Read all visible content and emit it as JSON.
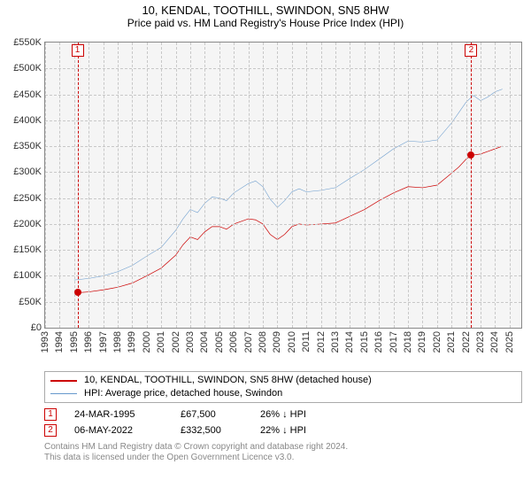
{
  "title": "10, KENDAL, TOOTHILL, SWINDON, SN5 8HW",
  "subtitle": "Price paid vs. HM Land Registry's House Price Index (HPI)",
  "chart": {
    "type": "line",
    "background_color": "#f5f5f5",
    "grid_color": "#c8c8c8",
    "x": {
      "min": 1993,
      "max": 2025.8,
      "labels": [
        "1993",
        "1994",
        "1995",
        "1996",
        "1997",
        "1998",
        "1999",
        "2000",
        "2001",
        "2002",
        "2003",
        "2004",
        "2005",
        "2006",
        "2007",
        "2008",
        "2009",
        "2010",
        "2011",
        "2012",
        "2013",
        "2014",
        "2015",
        "2016",
        "2017",
        "2018",
        "2019",
        "2020",
        "2021",
        "2022",
        "2023",
        "2024",
        "2025"
      ]
    },
    "y": {
      "min": 0,
      "max": 550000,
      "step": 50000,
      "labels": [
        "£0",
        "£50K",
        "£100K",
        "£150K",
        "£200K",
        "£250K",
        "£300K",
        "£350K",
        "£400K",
        "£450K",
        "£500K",
        "£550K"
      ],
      "fontsize": 11
    },
    "series": [
      {
        "name": "10, KENDAL, TOOTHILL, SWINDON, SN5 8HW (detached house)",
        "color": "#cc0000",
        "line_width": 2,
        "points": [
          [
            1995.23,
            67500
          ],
          [
            1996,
            69000
          ],
          [
            1997,
            73000
          ],
          [
            1998,
            78000
          ],
          [
            1999,
            86000
          ],
          [
            2000,
            100000
          ],
          [
            2001,
            115000
          ],
          [
            2002,
            140000
          ],
          [
            2002.5,
            160000
          ],
          [
            2003,
            175000
          ],
          [
            2003.5,
            170000
          ],
          [
            2004,
            185000
          ],
          [
            2004.5,
            195000
          ],
          [
            2005,
            195000
          ],
          [
            2005.5,
            190000
          ],
          [
            2006,
            200000
          ],
          [
            2007,
            210000
          ],
          [
            2007.5,
            208000
          ],
          [
            2008,
            200000
          ],
          [
            2008.5,
            180000
          ],
          [
            2009,
            170000
          ],
          [
            2009.5,
            180000
          ],
          [
            2010,
            195000
          ],
          [
            2010.5,
            200000
          ],
          [
            2011,
            198000
          ],
          [
            2012,
            200000
          ],
          [
            2013,
            202000
          ],
          [
            2014,
            215000
          ],
          [
            2015,
            228000
          ],
          [
            2016,
            245000
          ],
          [
            2017,
            260000
          ],
          [
            2018,
            272000
          ],
          [
            2019,
            270000
          ],
          [
            2020,
            275000
          ],
          [
            2021,
            298000
          ],
          [
            2021.5,
            310000
          ],
          [
            2022,
            325000
          ],
          [
            2022.35,
            332500
          ],
          [
            2023,
            335000
          ],
          [
            2023.5,
            340000
          ],
          [
            2024,
            345000
          ],
          [
            2024.5,
            350000
          ]
        ]
      },
      {
        "name": "HPI: Average price, detached house, Swindon",
        "color": "#6699cc",
        "line_width": 1.5,
        "points": [
          [
            1995,
            92000
          ],
          [
            1996,
            95000
          ],
          [
            1997,
            100000
          ],
          [
            1998,
            108000
          ],
          [
            1999,
            120000
          ],
          [
            2000,
            138000
          ],
          [
            2001,
            155000
          ],
          [
            2002,
            188000
          ],
          [
            2002.5,
            210000
          ],
          [
            2003,
            228000
          ],
          [
            2003.5,
            222000
          ],
          [
            2004,
            240000
          ],
          [
            2004.5,
            252000
          ],
          [
            2005,
            250000
          ],
          [
            2005.5,
            245000
          ],
          [
            2006,
            260000
          ],
          [
            2007,
            278000
          ],
          [
            2007.5,
            283000
          ],
          [
            2008,
            272000
          ],
          [
            2008.5,
            248000
          ],
          [
            2009,
            232000
          ],
          [
            2009.5,
            245000
          ],
          [
            2010,
            262000
          ],
          [
            2010.5,
            268000
          ],
          [
            2011,
            262000
          ],
          [
            2012,
            265000
          ],
          [
            2013,
            270000
          ],
          [
            2014,
            288000
          ],
          [
            2015,
            305000
          ],
          [
            2016,
            325000
          ],
          [
            2017,
            345000
          ],
          [
            2018,
            360000
          ],
          [
            2019,
            358000
          ],
          [
            2020,
            362000
          ],
          [
            2021,
            395000
          ],
          [
            2021.5,
            415000
          ],
          [
            2022,
            435000
          ],
          [
            2022.5,
            448000
          ],
          [
            2023,
            438000
          ],
          [
            2023.5,
            445000
          ],
          [
            2024,
            455000
          ],
          [
            2024.5,
            460000
          ]
        ]
      }
    ],
    "transaction_markers": [
      {
        "n": "1",
        "x": 1995.23,
        "y": 67500
      },
      {
        "n": "2",
        "x": 2022.35,
        "y": 332500
      }
    ]
  },
  "legend": [
    {
      "label": "10, KENDAL, TOOTHILL, SWINDON, SN5 8HW (detached house)",
      "color": "#cc0000",
      "width": 2
    },
    {
      "label": "HPI: Average price, detached house, Swindon",
      "color": "#6699cc",
      "width": 1.5
    }
  ],
  "transactions": [
    {
      "n": "1",
      "date": "24-MAR-1995",
      "price": "£67,500",
      "delta": "26% ↓ HPI"
    },
    {
      "n": "2",
      "date": "06-MAY-2022",
      "price": "£332,500",
      "delta": "22% ↓ HPI"
    }
  ],
  "footer_line1": "Contains HM Land Registry data © Crown copyright and database right 2024.",
  "footer_line2": "This data is licensed under the Open Government Licence v3.0."
}
